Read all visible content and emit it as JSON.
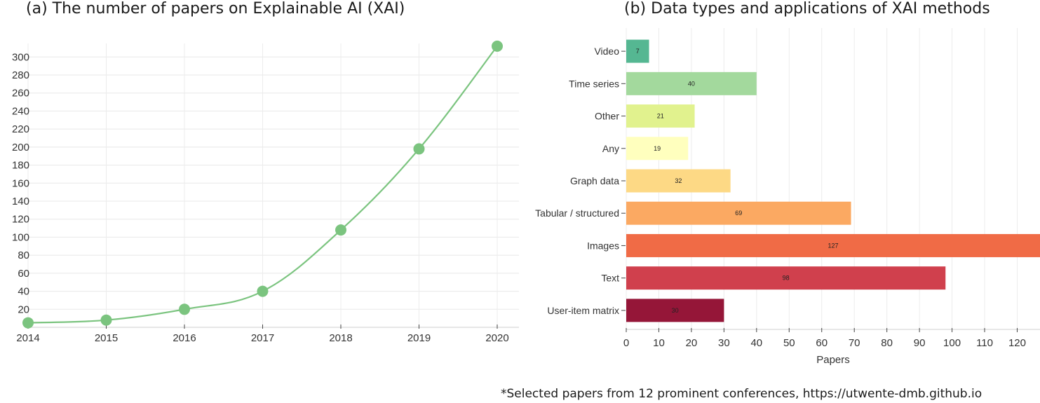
{
  "footnote": "*Selected papers from 12 prominent conferences, https://utwente-dmb.github.io",
  "chart_data": [
    {
      "type": "line",
      "title": "(a) The number of papers on Explainable AI (XAI)",
      "xlabel": "",
      "ylabel": "",
      "x": [
        2014,
        2015,
        2016,
        2017,
        2018,
        2019,
        2020
      ],
      "x_tick_labels": [
        "2014",
        "2015",
        "2016",
        "2017",
        "2018",
        "2019",
        "2020"
      ],
      "values": [
        5,
        8,
        20,
        40,
        108,
        198,
        312
      ],
      "ylim": [
        0,
        315
      ],
      "y_ticks": [
        20,
        40,
        60,
        80,
        100,
        120,
        140,
        160,
        180,
        200,
        220,
        240,
        260,
        280,
        300
      ],
      "color": "#7bc47f",
      "grid": true,
      "smooth": true
    },
    {
      "type": "bar",
      "orientation": "horizontal",
      "title": "(b) Data types and applications of XAI methods",
      "xlabel": "Papers",
      "ylabel": "",
      "categories": [
        "Video",
        "Time series",
        "Other",
        "Any",
        "Graph data",
        "Tabular / structured",
        "Images",
        "Text",
        "User-item matrix"
      ],
      "values": [
        7,
        40,
        21,
        19,
        32,
        69,
        127,
        98,
        30
      ],
      "value_labels": [
        "7",
        "40",
        "21",
        "19",
        "32",
        "69",
        "127",
        "98",
        "30"
      ],
      "colors": [
        "#55b792",
        "#a3d99d",
        "#e1f28e",
        "#ffffbe",
        "#fdd985",
        "#fba962",
        "#f06b46",
        "#d0404d",
        "#951638"
      ],
      "xlim": [
        0,
        127
      ],
      "x_ticks": [
        0,
        10,
        20,
        30,
        40,
        50,
        60,
        70,
        80,
        90,
        100,
        110,
        120
      ],
      "grid": true
    }
  ]
}
